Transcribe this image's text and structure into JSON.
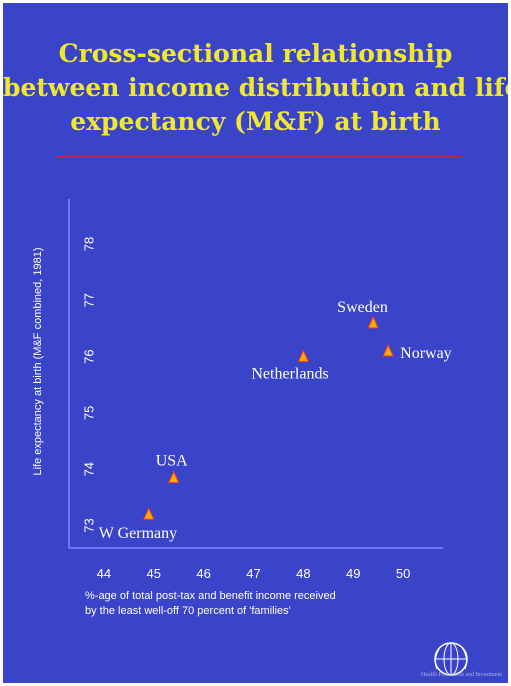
{
  "title_lines": [
    "Cross-sectional relationship",
    "between income distribution and life",
    "expectancy (M&F) at birth"
  ],
  "colors": {
    "background": "#3a44c8",
    "title": "#f0e830",
    "rule": "#c8203a",
    "axis": "#7a86ff",
    "text": "#ffffff",
    "marker": "#f0b000",
    "marker_edge": "#ff3030"
  },
  "chart_data": {
    "type": "scatter",
    "title": "Cross-sectional relationship between income distribution and life expectancy (M&F) at birth",
    "xlabel_lines": [
      "%-age of total post-tax and benefit income received",
      "by the least well-off 70 percent of 'families'"
    ],
    "ylabel": "Life expectancy at birth (M&F combined, 1981)",
    "xlim": [
      43.3,
      50.8
    ],
    "ylim": [
      72.6,
      78.8
    ],
    "xticks": [
      44,
      45,
      46,
      47,
      48,
      49,
      50
    ],
    "yticks": [
      73,
      74,
      75,
      76,
      77,
      78
    ],
    "grid": false,
    "points": [
      {
        "label": "W Germany",
        "x": 44.9,
        "y": 73.2
      },
      {
        "label": "USA",
        "x": 45.4,
        "y": 73.85
      },
      {
        "label": "Netherlands",
        "x": 48.0,
        "y": 76.0
      },
      {
        "label": "Sweden",
        "x": 49.4,
        "y": 76.6
      },
      {
        "label": "Norway",
        "x": 49.7,
        "y": 76.1
      }
    ]
  },
  "footer": {
    "logo": "who-emblem-icon",
    "text": "Health Promotion and Investment"
  }
}
